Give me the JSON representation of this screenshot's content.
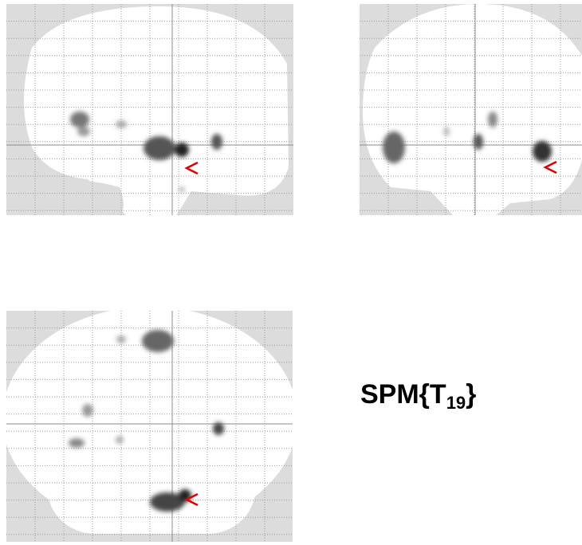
{
  "label": {
    "main": "SPM{T",
    "subscript": "19",
    "close": "}"
  }
}
